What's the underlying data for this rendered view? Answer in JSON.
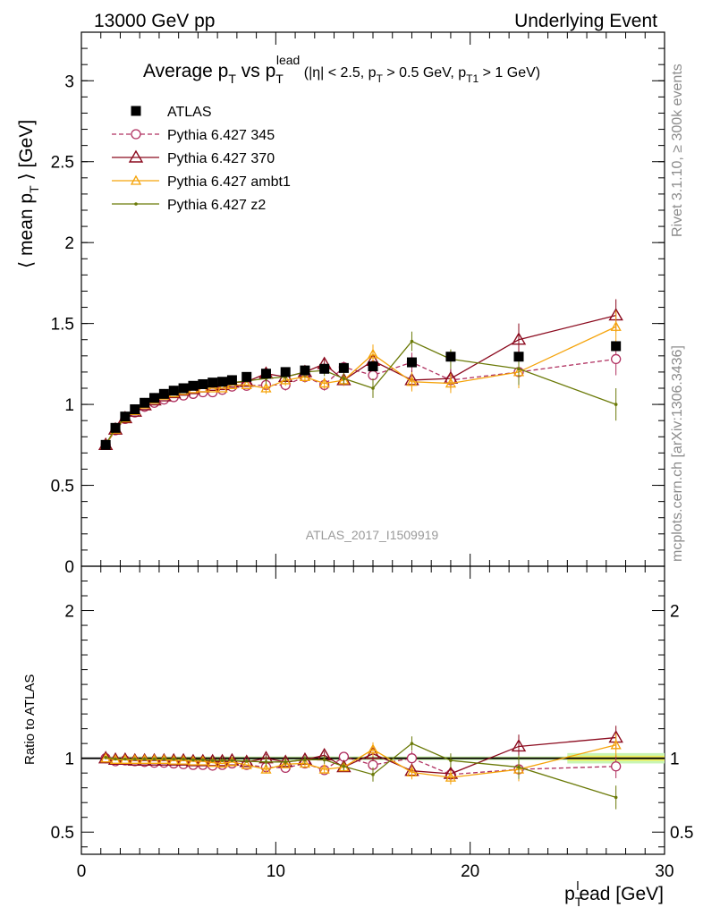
{
  "header": {
    "left": "13000 GeV pp",
    "right": "Underlying Event"
  },
  "side_text": {
    "rivet": "Rivet 3.1.10, ≥ 300k events",
    "mcplots": "mcplots.cern.ch [arXiv:1306.3436]"
  },
  "watermark": "ATLAS_2017_I1509919",
  "title": {
    "main": "Average p",
    "main_sub": "T",
    "vs": " vs p",
    "vs_sub": "T",
    "vs_sup": "lead",
    "cuts_a": " (|η| < 2.5, p",
    "cuts_a_sub": "T",
    "cuts_b": " > 0.5 GeV, p",
    "cuts_b_sub": "T1",
    "cuts_c": " > 1 GeV)"
  },
  "axes": {
    "ylabel_top_a": "⟨ mean p",
    "ylabel_top_sub": "T",
    "ylabel_top_b": " ⟩ [GeV]",
    "ylabel_bottom": "Ratio to ATLAS",
    "xlabel_a": "p",
    "xlabel_sup": "l",
    "xlabel_sub": "T",
    "xlabel_b": "ead [GeV]"
  },
  "colors": {
    "atlas": "#000000",
    "p345": "#b03060",
    "p370": "#8b0a1e",
    "ambt1": "#f5a30a",
    "z2": "#6b7a08",
    "band_inner": "#f2f25e",
    "band_outer": "#c8f5b4"
  },
  "chart_data": {
    "type": "scatter",
    "x_range": [
      0,
      30
    ],
    "y_range_main": [
      0,
      3.3
    ],
    "y_range_ratio": [
      0.35,
      2.3
    ],
    "x_ticks": [
      "0",
      "10",
      "20",
      "30"
    ],
    "y_ticks_main": [
      "0",
      "0.5",
      "1",
      "1.5",
      "2",
      "2.5",
      "3"
    ],
    "y_ticks_ratio": [
      "0.5",
      "1",
      "2"
    ],
    "legend_position": "top-left",
    "series": [
      {
        "name": "ATLAS",
        "marker": "square",
        "x": [
          1.25,
          1.75,
          2.25,
          2.75,
          3.25,
          3.75,
          4.25,
          4.75,
          5.25,
          5.75,
          6.25,
          6.75,
          7.25,
          7.75,
          8.5,
          9.5,
          10.5,
          11.5,
          12.5,
          13.5,
          15,
          17,
          19,
          22.5,
          27.5
        ],
        "y": [
          0.75,
          0.855,
          0.925,
          0.97,
          1.01,
          1.04,
          1.065,
          1.085,
          1.1,
          1.115,
          1.125,
          1.135,
          1.14,
          1.15,
          1.17,
          1.19,
          1.2,
          1.21,
          1.22,
          1.225,
          1.235,
          1.26,
          1.295,
          1.295,
          1.36
        ],
        "ratio": [
          1,
          1,
          1,
          1,
          1,
          1,
          1,
          1,
          1,
          1,
          1,
          1,
          1,
          1,
          1,
          1,
          1,
          1,
          1,
          1,
          1,
          1,
          1,
          1,
          1
        ]
      },
      {
        "name": "Pythia 6.427 345",
        "marker": "open-circle",
        "x": [
          1.25,
          1.75,
          2.25,
          2.75,
          3.25,
          3.75,
          4.25,
          4.75,
          5.25,
          5.75,
          6.25,
          6.75,
          7.25,
          7.75,
          8.5,
          9.5,
          10.5,
          11.5,
          12.5,
          13.5,
          15,
          17,
          19,
          22.5,
          27.5
        ],
        "y": [
          0.75,
          0.84,
          0.91,
          0.95,
          0.985,
          1.01,
          1.03,
          1.045,
          1.055,
          1.065,
          1.075,
          1.075,
          1.09,
          1.11,
          1.115,
          1.12,
          1.12,
          1.17,
          1.12,
          1.23,
          1.18,
          1.26,
          1.15,
          1.2,
          1.28
        ],
        "ratio": [
          1.0,
          0.98,
          0.985,
          0.98,
          0.975,
          0.97,
          0.97,
          0.965,
          0.96,
          0.955,
          0.955,
          0.95,
          0.955,
          0.965,
          0.955,
          0.94,
          0.935,
          0.965,
          0.92,
          1.01,
          0.955,
          1.0,
          0.89,
          0.925,
          0.945
        ]
      },
      {
        "name": "Pythia 6.427 370",
        "marker": "open-triangle",
        "x": [
          1.25,
          1.75,
          2.25,
          2.75,
          3.25,
          3.75,
          4.25,
          4.75,
          5.25,
          5.75,
          6.25,
          6.75,
          7.25,
          7.75,
          8.5,
          9.5,
          10.5,
          11.5,
          12.5,
          13.5,
          15,
          17,
          19,
          22.5,
          27.5
        ],
        "y": [
          0.75,
          0.845,
          0.915,
          0.955,
          0.995,
          1.025,
          1.05,
          1.07,
          1.085,
          1.095,
          1.105,
          1.115,
          1.12,
          1.135,
          1.14,
          1.19,
          1.17,
          1.2,
          1.25,
          1.15,
          1.27,
          1.15,
          1.16,
          1.4,
          1.55
        ],
        "ratio": [
          1.0,
          0.99,
          0.99,
          0.985,
          0.985,
          0.985,
          0.985,
          0.985,
          0.985,
          0.98,
          0.98,
          0.98,
          0.98,
          0.985,
          0.975,
          1.0,
          0.975,
          0.99,
          1.02,
          0.94,
          1.03,
          0.915,
          0.895,
          1.08,
          1.14
        ]
      },
      {
        "name": "Pythia 6.427 ambt1",
        "marker": "open-triangle-small",
        "x": [
          1.25,
          1.75,
          2.25,
          2.75,
          3.25,
          3.75,
          4.25,
          4.75,
          5.25,
          5.75,
          6.25,
          6.75,
          7.25,
          7.75,
          8.5,
          9.5,
          10.5,
          11.5,
          12.5,
          13.5,
          15,
          17,
          19,
          22.5,
          27.5
        ],
        "y": [
          0.75,
          0.845,
          0.915,
          0.96,
          1.0,
          1.03,
          1.055,
          1.07,
          1.085,
          1.095,
          1.1,
          1.1,
          1.1,
          1.12,
          1.12,
          1.1,
          1.15,
          1.17,
          1.13,
          1.15,
          1.31,
          1.14,
          1.13,
          1.2,
          1.48
        ],
        "ratio": [
          1.0,
          0.99,
          0.99,
          0.99,
          0.99,
          0.99,
          0.99,
          0.985,
          0.985,
          0.98,
          0.98,
          0.97,
          0.965,
          0.975,
          0.955,
          0.925,
          0.96,
          0.965,
          0.925,
          0.94,
          1.06,
          0.905,
          0.87,
          0.925,
          1.09
        ]
      },
      {
        "name": "Pythia 6.427 z2",
        "marker": "dot",
        "x": [
          1.25,
          1.75,
          2.25,
          2.75,
          3.25,
          3.75,
          4.25,
          4.75,
          5.25,
          5.75,
          6.25,
          6.75,
          7.25,
          7.75,
          8.5,
          9.5,
          10.5,
          11.5,
          12.5,
          13.5,
          15,
          17,
          19,
          22.5,
          27.5
        ],
        "y": [
          0.755,
          0.85,
          0.92,
          0.965,
          1.005,
          1.035,
          1.06,
          1.08,
          1.095,
          1.105,
          1.115,
          1.12,
          1.125,
          1.135,
          1.145,
          1.16,
          1.17,
          1.2,
          1.21,
          1.16,
          1.1,
          1.39,
          1.28,
          1.22,
          1.0
        ],
        "ratio": [
          1.005,
          0.995,
          0.995,
          0.995,
          0.995,
          0.995,
          0.995,
          0.995,
          0.995,
          0.99,
          0.99,
          0.985,
          0.985,
          0.985,
          0.98,
          0.975,
          0.975,
          0.99,
          0.99,
          0.945,
          0.89,
          1.1,
          0.985,
          0.94,
          0.735
        ]
      }
    ]
  }
}
